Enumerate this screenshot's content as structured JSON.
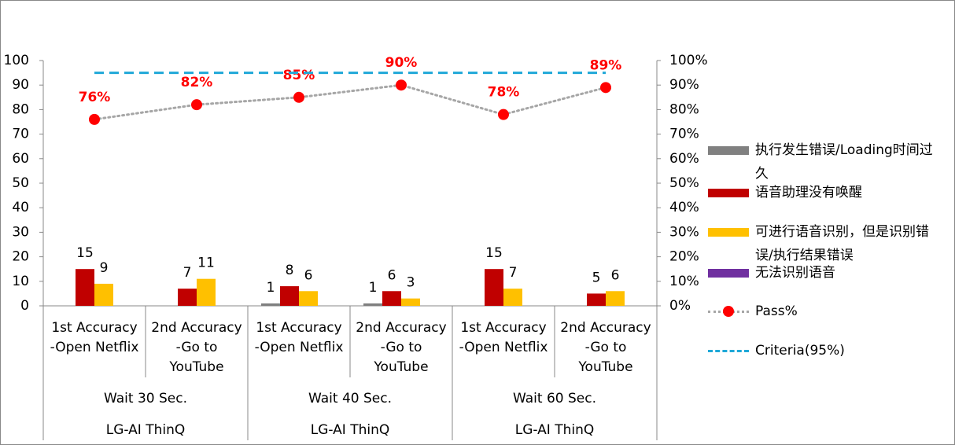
{
  "chart_data": {
    "type": "bar",
    "categories": [
      [
        "1st Accuracy",
        "-Open Netflix"
      ],
      [
        "2nd Accuracy",
        "-Go to",
        "YouTube"
      ],
      [
        "1st Accuracy",
        "-Open Netflix"
      ],
      [
        "2nd Accuracy",
        "-Go to",
        "YouTube"
      ],
      [
        "1st Accuracy",
        "-Open Netflix"
      ],
      [
        "2nd Accuracy",
        "-Go to",
        "YouTube"
      ]
    ],
    "groups": [
      "Wait 30 Sec.",
      "Wait 40 Sec.",
      "Wait 60 Sec."
    ],
    "outer_groups": [
      "LG-AI ThinQ",
      "LG-AI ThinQ",
      "LG-AI ThinQ"
    ],
    "series": [
      {
        "name": "执行发生错误/Loading时间过久",
        "color": "#808080",
        "values": [
          null,
          null,
          1,
          1,
          null,
          null
        ]
      },
      {
        "name": "语音助理没有唤醒",
        "color": "#c00000",
        "values": [
          15,
          7,
          8,
          6,
          15,
          5
        ]
      },
      {
        "name": "可进行语音识别，但是识别错误/执行结果错误",
        "color": "#ffc000",
        "values": [
          9,
          11,
          6,
          3,
          7,
          6
        ]
      },
      {
        "name": "无法识别语音",
        "color": "#7030a0",
        "values": [
          null,
          null,
          null,
          null,
          null,
          null
        ]
      },
      {
        "name": "Pass%",
        "type": "line",
        "axis": "y2",
        "color": "#ff0000",
        "line_color": "#a6a6a6",
        "values": [
          76,
          82,
          85,
          90,
          78,
          89
        ],
        "value_labels": [
          "76%",
          "82%",
          "85%",
          "90%",
          "78%",
          "89%"
        ]
      },
      {
        "name": "Criteria(95%)",
        "type": "line",
        "axis": "y2",
        "color": "#1fa8d8",
        "values": [
          95,
          95,
          95,
          95,
          95,
          95
        ]
      }
    ],
    "ylim": [
      0,
      100
    ],
    "yticks": [
      0,
      10,
      20,
      30,
      40,
      50,
      60,
      70,
      80,
      90,
      100
    ],
    "y2lim": [
      0,
      100
    ],
    "y2ticks": [
      {
        "value": 0,
        "label": "0%"
      },
      {
        "value": 10,
        "label": "10%"
      },
      {
        "value": 20,
        "label": "20%"
      },
      {
        "value": 30,
        "label": "30%"
      },
      {
        "value": 40,
        "label": "40%"
      },
      {
        "value": 50,
        "label": "50%"
      },
      {
        "value": 60,
        "label": "60%"
      },
      {
        "value": 70,
        "label": "70%"
      },
      {
        "value": 80,
        "label": "80%"
      },
      {
        "value": 90,
        "label": "90%"
      },
      {
        "value": 100,
        "label": "100%"
      }
    ],
    "legend": "right"
  }
}
